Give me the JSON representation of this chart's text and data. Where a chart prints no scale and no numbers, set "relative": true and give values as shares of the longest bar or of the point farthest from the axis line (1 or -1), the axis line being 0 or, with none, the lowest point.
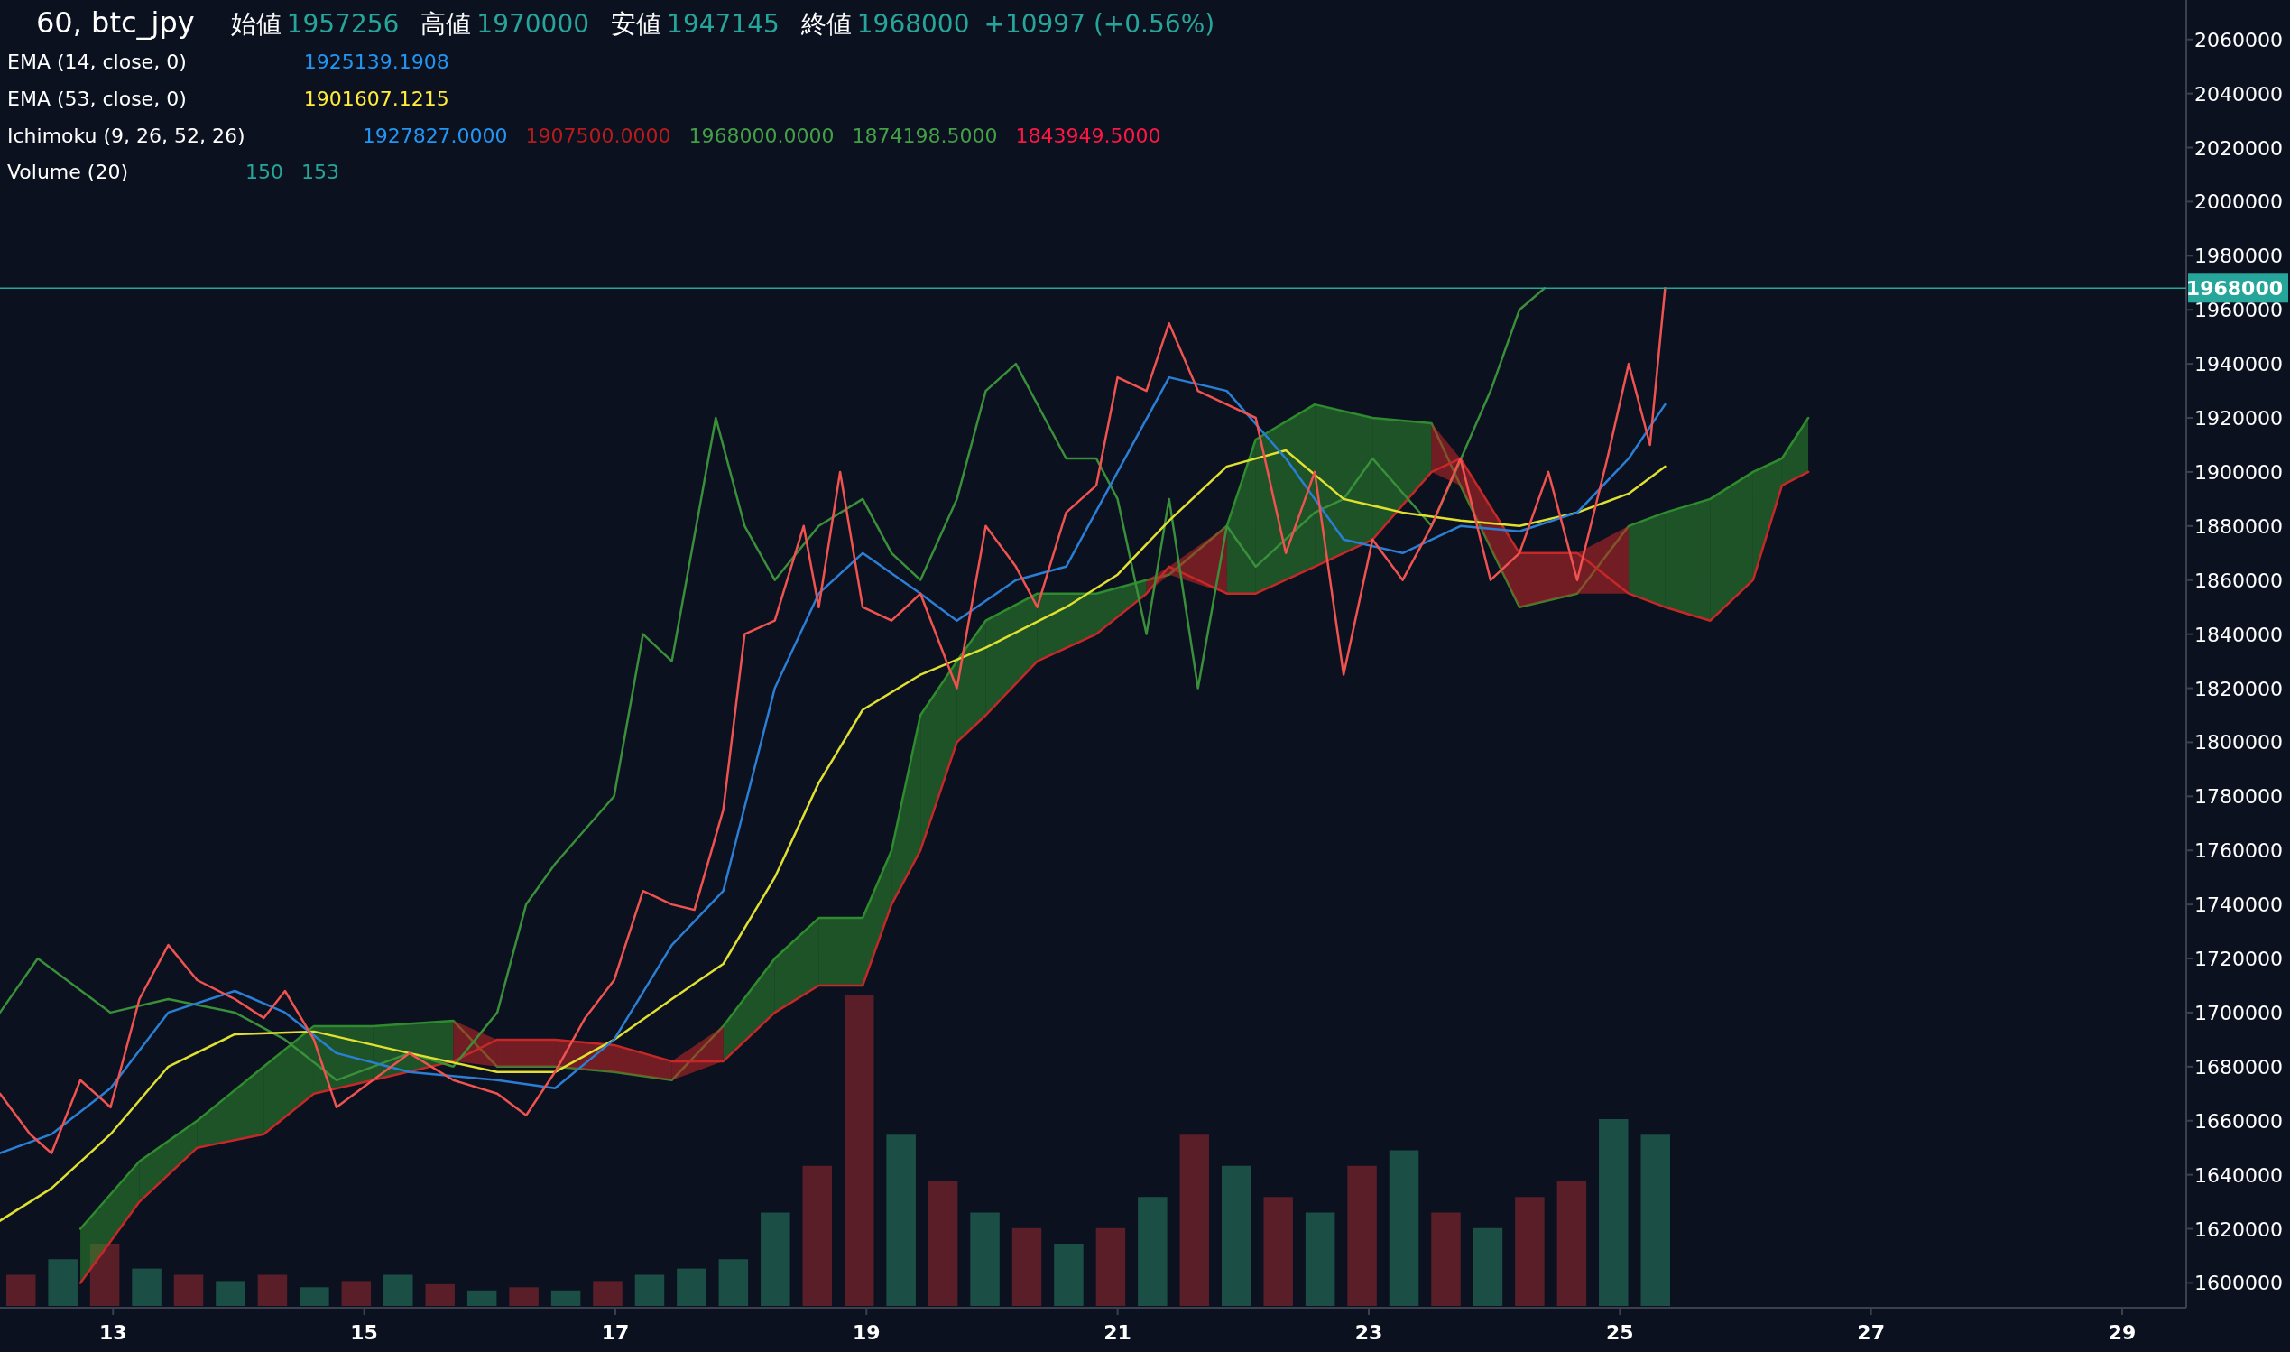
{
  "chart_data": [
    {
      "type": "line",
      "title": "60, btc_jpy",
      "annotations": [
        "始値",
        "1957256",
        "高値",
        "1970000",
        "安値",
        "1947145",
        "終値",
        "1968000",
        "+10997 (+0.56%)",
        "EMA (14, close, 0)",
        "1925139.1908",
        "EMA (53, close, 0)",
        "1901607.1215",
        "Ichimoku (9, 26, 52, 26)",
        "1927827.0000",
        "1907500.0000",
        "1968000.0000",
        "1874198.5000",
        "1843949.5000",
        "Volume (20)",
        "150",
        "153"
      ],
      "xlim": [
        12.1,
        29.51
      ],
      "ylim": [
        1590800,
        2074600
      ],
      "xticks": [
        13,
        15,
        17,
        19,
        21,
        23,
        25,
        27,
        29
      ],
      "yticks": [
        1600000,
        1620000,
        1640000,
        1660000,
        1680000,
        1700000,
        1720000,
        1740000,
        1760000,
        1780000,
        1800000,
        1820000,
        1840000,
        1860000,
        1880000,
        1900000,
        1920000,
        1940000,
        1960000,
        1980000,
        2000000,
        2020000,
        2040000,
        2060000
      ],
      "grid": false,
      "ref_lines": [
        {
          "axis": "y",
          "value": 1968000,
          "label": "1968000",
          "color": "#26a69a"
        }
      ],
      "series": [
        {
          "color": "#2e8b2e",
          "x": [
            12.74,
            13.21,
            13.67,
            14.2,
            14.6,
            15.07,
            15.71,
            16.06,
            16.52,
            16.99,
            17.45,
            17.86,
            18.27,
            18.62,
            18.97,
            19.2,
            19.43,
            19.72,
            19.95,
            20.36,
            20.83,
            21.23,
            21.41,
            21.87,
            22.1,
            22.57,
            23.03,
            23.5,
            23.73,
            24.2,
            24.66,
            25.07,
            25.36,
            25.72,
            26.06,
            26.29,
            26.5
          ],
          "values": [
            1620000,
            1645000,
            1660000,
            1680000,
            1695000,
            1695000,
            1697000,
            1680000,
            1680000,
            1678000,
            1675000,
            1695000,
            1720000,
            1735000,
            1735000,
            1760000,
            1810000,
            1830000,
            1845000,
            1855000,
            1855000,
            1860000,
            1862000,
            1880000,
            1912000,
            1925000,
            1920000,
            1918000,
            1895000,
            1850000,
            1855000,
            1880000,
            1885000,
            1890000,
            1900000,
            1905000,
            1920000
          ],
          "upper": [
            1620000,
            1645000,
            1660000,
            1680000,
            1695000,
            1695000,
            1697000,
            null,
            null,
            null,
            null,
            1695000,
            1720000,
            1735000,
            1735000,
            1760000,
            1810000,
            1830000,
            1845000,
            1855000,
            1855000,
            1860000,
            null,
            1880000,
            1912000,
            1925000,
            1920000,
            1918000,
            null,
            null,
            null,
            1880000,
            1885000,
            1890000,
            1900000,
            1905000,
            1920000
          ],
          "lower": [
            1600000,
            1630000,
            1650000,
            1655000,
            1670000,
            1675000,
            1682000,
            null,
            null,
            null,
            null,
            1682000,
            1700000,
            1710000,
            1710000,
            1740000,
            1760000,
            1800000,
            1810000,
            1830000,
            1840000,
            1855000,
            null,
            1855000,
            1855000,
            1865000,
            1875000,
            1900000,
            null,
            null,
            null,
            1855000,
            1850000,
            1845000,
            1860000,
            1895000,
            1900000
          ]
        },
        {
          "color": "#c62828",
          "upper": [
            null,
            null,
            null,
            null,
            null,
            null,
            1697000,
            1690000,
            1690000,
            1688000,
            1682000,
            1695000,
            null,
            null,
            null,
            null,
            null,
            null,
            null,
            null,
            null,
            1860000,
            1865000,
            1880000,
            null,
            null,
            null,
            1918000,
            1905000,
            1870000,
            1870000,
            1880000,
            null,
            null,
            null,
            null,
            null
          ],
          "lower": [
            null,
            null,
            null,
            null,
            null,
            null,
            1682000,
            1680000,
            1680000,
            1678000,
            1675000,
            1682000,
            null,
            null,
            null,
            null,
            null,
            null,
            null,
            null,
            null,
            1855000,
            1862000,
            1855000,
            null,
            null,
            null,
            1900000,
            1895000,
            1850000,
            1855000,
            1855000,
            null,
            null,
            null,
            null,
            null
          ],
          "x": [
            12.74,
            13.21,
            13.67,
            14.2,
            14.6,
            15.07,
            15.71,
            16.06,
            16.52,
            16.99,
            17.45,
            17.86,
            18.27,
            18.62,
            18.97,
            19.2,
            19.43,
            19.72,
            19.95,
            20.36,
            20.83,
            21.23,
            21.41,
            21.87,
            22.1,
            22.57,
            23.03,
            23.5,
            23.73,
            24.2,
            24.66,
            25.07,
            25.36,
            25.72,
            26.06,
            26.29,
            26.5
          ],
          "values": [
            1600000,
            1630000,
            1650000,
            1655000,
            1670000,
            1675000,
            1682000,
            1690000,
            1690000,
            1688000,
            1682000,
            1682000,
            1700000,
            1710000,
            1710000,
            1740000,
            1760000,
            1800000,
            1810000,
            1830000,
            1840000,
            1855000,
            1865000,
            1855000,
            1855000,
            1865000,
            1875000,
            1900000,
            1905000,
            1870000,
            1870000,
            1855000,
            1850000,
            1845000,
            1860000,
            1895000,
            1900000
          ]
        },
        {
          "color": "#3a8f3a",
          "x": [
            12.1,
            12.4,
            12.98,
            13.44,
            13.97,
            14.37,
            14.78,
            15.36,
            15.71,
            16.06,
            16.29,
            16.52,
            16.99,
            17.22,
            17.45,
            17.8,
            18.03,
            18.27,
            18.62,
            18.97,
            19.2,
            19.43,
            19.72,
            19.95,
            20.19,
            20.59,
            20.83,
            21.0,
            21.23,
            21.41,
            21.64,
            21.87,
            22.1,
            22.57,
            22.8,
            23.03,
            23.5,
            23.97,
            24.2,
            24.4
          ],
          "values": [
            1700000,
            1720000,
            1700000,
            1705000,
            1700000,
            1690000,
            1675000,
            1685000,
            1680000,
            1700000,
            1740000,
            1755000,
            1780000,
            1840000,
            1830000,
            1920000,
            1880000,
            1860000,
            1880000,
            1890000,
            1870000,
            1860000,
            1890000,
            1930000,
            1940000,
            1905000,
            1905000,
            1890000,
            1840000,
            1890000,
            1820000,
            1880000,
            1865000,
            1885000,
            1890000,
            1905000,
            1880000,
            1930000,
            1960000,
            1968000
          ]
        },
        {
          "color": "#e0e030",
          "x": [
            12.1,
            12.51,
            12.98,
            13.44,
            13.97,
            14.6,
            15.36,
            16.06,
            16.52,
            16.99,
            17.45,
            17.86,
            18.27,
            18.62,
            18.97,
            19.43,
            19.95,
            20.59,
            21.0,
            21.41,
            21.87,
            22.34,
            22.8,
            23.27,
            23.73,
            24.2,
            24.66,
            25.07,
            25.36
          ],
          "values": [
            1623000,
            1635000,
            1655000,
            1680000,
            1692000,
            1693000,
            1685000,
            1678000,
            1678000,
            1690000,
            1705000,
            1718000,
            1750000,
            1785000,
            1812000,
            1825000,
            1835000,
            1850000,
            1862000,
            1882000,
            1902000,
            1908000,
            1890000,
            1885000,
            1882000,
            1880000,
            1885000,
            1892000,
            1902000
          ]
        },
        {
          "color": "#2a7fd4",
          "x": [
            12.1,
            12.51,
            12.98,
            13.44,
            13.97,
            14.37,
            14.78,
            15.36,
            16.06,
            16.52,
            16.99,
            17.45,
            17.86,
            18.27,
            18.62,
            18.97,
            19.43,
            19.72,
            20.19,
            20.59,
            21.0,
            21.41,
            21.87,
            22.34,
            22.8,
            23.27,
            23.73,
            24.2,
            24.66,
            25.07,
            25.36
          ],
          "values": [
            1648000,
            1655000,
            1672000,
            1700000,
            1708000,
            1700000,
            1685000,
            1678000,
            1675000,
            1672000,
            1690000,
            1725000,
            1745000,
            1820000,
            1855000,
            1870000,
            1855000,
            1845000,
            1860000,
            1865000,
            1900000,
            1935000,
            1930000,
            1905000,
            1875000,
            1870000,
            1880000,
            1878000,
            1885000,
            1905000,
            1925000
          ]
        },
        {
          "color": "#ef5350",
          "x": [
            12.1,
            12.34,
            12.51,
            12.74,
            12.98,
            13.21,
            13.44,
            13.67,
            13.97,
            14.2,
            14.37,
            14.6,
            14.78,
            15.07,
            15.36,
            15.71,
            16.06,
            16.29,
            16.52,
            16.76,
            16.99,
            17.22,
            17.45,
            17.63,
            17.86,
            18.03,
            18.27,
            18.5,
            18.62,
            18.79,
            18.97,
            19.2,
            19.43,
            19.72,
            19.95,
            20.19,
            20.36,
            20.59,
            20.83,
            21.0,
            21.23,
            21.41,
            21.64,
            21.87,
            22.1,
            22.34,
            22.57,
            22.8,
            23.03,
            23.27,
            23.5,
            23.73,
            23.97,
            24.2,
            24.43,
            24.66,
            24.9,
            25.07,
            25.24,
            25.36
          ],
          "values": [
            1670000,
            1655000,
            1648000,
            1675000,
            1665000,
            1705000,
            1725000,
            1712000,
            1705000,
            1698000,
            1708000,
            1690000,
            1665000,
            1675000,
            1685000,
            1675000,
            1670000,
            1662000,
            1678000,
            1698000,
            1712000,
            1745000,
            1740000,
            1738000,
            1775000,
            1840000,
            1845000,
            1880000,
            1850000,
            1900000,
            1850000,
            1845000,
            1855000,
            1820000,
            1880000,
            1865000,
            1850000,
            1885000,
            1895000,
            1935000,
            1930000,
            1955000,
            1930000,
            1925000,
            1920000,
            1870000,
            1900000,
            1825000,
            1875000,
            1860000,
            1880000,
            1905000,
            1860000,
            1870000,
            1900000,
            1860000,
            1905000,
            1940000,
            1910000,
            1968000
          ]
        }
      ]
    },
    {
      "type": "bar",
      "relative": true,
      "categories": [
        null,
        null,
        null,
        null,
        null,
        null,
        null,
        null,
        null,
        null,
        null,
        null,
        null,
        null,
        null,
        null,
        null,
        null,
        null,
        null,
        null,
        null,
        null,
        null,
        null,
        null,
        null,
        null,
        null,
        null,
        null,
        null,
        null,
        null,
        null,
        null,
        null,
        null,
        null,
        null
      ],
      "values": [
        0.1,
        0.15,
        0.2,
        0.12,
        0.1,
        0.08,
        0.1,
        0.06,
        0.08,
        0.1,
        0.07,
        0.05,
        0.06,
        0.05,
        0.08,
        0.1,
        0.12,
        0.15,
        0.3,
        0.45,
        1.0,
        0.55,
        0.4,
        0.3,
        0.25,
        0.2,
        0.25,
        0.35,
        0.55,
        0.45,
        0.35,
        0.3,
        0.45,
        0.5,
        0.3,
        0.25,
        0.35,
        0.4,
        0.6,
        0.55
      ],
      "colors": [
        "#5a1e28",
        "#1b4f46",
        "#5a1e28",
        "#1b4f46",
        "#5a1e28",
        "#1b4f46",
        "#5a1e28",
        "#1b4f46",
        "#5a1e28",
        "#1b4f46",
        "#5a1e28",
        "#1b4f46",
        "#5a1e28",
        "#1b4f46",
        "#5a1e28",
        "#1b4f46",
        "#1b4f46",
        "#1b4f46",
        "#1b4f46",
        "#5a1e28",
        "#5a1e28",
        "#1b4f46",
        "#5a1e28",
        "#1b4f46",
        "#5a1e28",
        "#1b4f46",
        "#5a1e28",
        "#1b4f46",
        "#5a1e28",
        "#1b4f46",
        "#5a1e28",
        "#1b4f46",
        "#5a1e28",
        "#1b4f46",
        "#5a1e28",
        "#1b4f46",
        "#5a1e28",
        "#5a1e28",
        "#1b4f46",
        "#1b4f46"
      ]
    }
  ]
}
